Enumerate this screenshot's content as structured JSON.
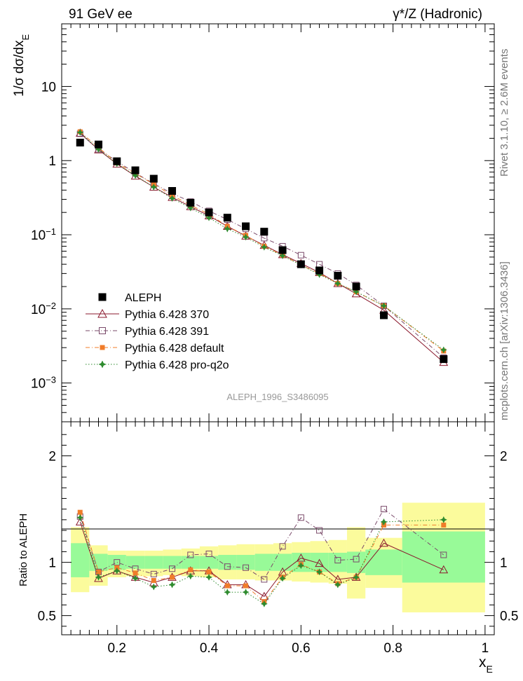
{
  "header": {
    "left_title": "91 GeV ee",
    "right_title": "γ*/Z (Hadronic)",
    "side_label_top": "Rivet 3.1.10, ≥ 2.6M events",
    "side_label_bottom": "mcplots.cern.ch [arXiv:1306.3436]",
    "watermark": "ALEPH_1996_S3486095"
  },
  "colors": {
    "data": "#000000",
    "p370": "#8b1a2e",
    "p391": "#7a4a6a",
    "pdefault": "#f07c2a",
    "pq2o": "#2e8b2e",
    "band_inner": "#98fa98",
    "band_outer": "#fbfb9c"
  },
  "chart_data": [
    {
      "type": "scatter",
      "title": "",
      "xlabel": "x_E",
      "ylabel": "1/σ dσ/dx_E",
      "yscale": "log",
      "ylim": [
        0.0003,
        70
      ],
      "xlim": [
        0.08,
        1.02
      ],
      "ytick_labels": [
        "10^-3",
        "10^-2",
        "10^-1",
        "1",
        "10"
      ],
      "legend_position": "bottom-left",
      "series": [
        {
          "name": "ALEPH",
          "color_key": "data",
          "marker": "filled-square",
          "x": [
            0.12,
            0.16,
            0.2,
            0.24,
            0.28,
            0.32,
            0.36,
            0.4,
            0.44,
            0.48,
            0.52,
            0.56,
            0.6,
            0.64,
            0.68,
            0.72,
            0.78,
            0.91
          ],
          "y": [
            1.75,
            1.65,
            0.98,
            0.74,
            0.57,
            0.39,
            0.27,
            0.2,
            0.17,
            0.13,
            0.11,
            0.062,
            0.04,
            0.033,
            0.028,
            0.02,
            0.0082,
            0.0021
          ]
        },
        {
          "name": "Pythia 6.428 370",
          "color_key": "p370",
          "marker": "open-triangle",
          "line": "solid",
          "x": [
            0.12,
            0.16,
            0.2,
            0.24,
            0.28,
            0.32,
            0.36,
            0.4,
            0.44,
            0.48,
            0.52,
            0.56,
            0.6,
            0.64,
            0.68,
            0.72,
            0.78,
            0.91
          ],
          "y": [
            2.35,
            1.4,
            0.9,
            0.62,
            0.44,
            0.32,
            0.24,
            0.18,
            0.13,
            0.096,
            0.072,
            0.054,
            0.041,
            0.031,
            0.022,
            0.016,
            0.0096,
            0.0019
          ]
        },
        {
          "name": "Pythia 6.428 391",
          "color_key": "p391",
          "marker": "open-square",
          "line": "dashdot",
          "x": [
            0.12,
            0.16,
            0.2,
            0.24,
            0.28,
            0.32,
            0.36,
            0.4,
            0.44,
            0.48,
            0.52,
            0.56,
            0.6,
            0.64,
            0.68,
            0.72,
            0.78,
            0.91
          ],
          "y": [
            2.3,
            1.42,
            0.98,
            0.68,
            0.49,
            0.36,
            0.28,
            0.21,
            0.16,
            0.12,
            0.09,
            0.07,
            0.053,
            0.04,
            0.03,
            0.021,
            0.011,
            0.0022
          ]
        },
        {
          "name": "Pythia 6.428 default",
          "color_key": "pdefault",
          "marker": "filled-square",
          "line": "dashdot",
          "x": [
            0.12,
            0.16,
            0.2,
            0.24,
            0.28,
            0.32,
            0.36,
            0.4,
            0.44,
            0.48,
            0.52,
            0.56,
            0.6,
            0.64,
            0.68,
            0.72,
            0.78,
            0.91
          ],
          "y": [
            2.45,
            1.5,
            0.93,
            0.67,
            0.48,
            0.34,
            0.25,
            0.19,
            0.13,
            0.098,
            0.07,
            0.053,
            0.039,
            0.03,
            0.022,
            0.017,
            0.011,
            0.0027
          ]
        },
        {
          "name": "Pythia 6.428 pro-q2o",
          "color_key": "pq2o",
          "marker": "star",
          "line": "dotted",
          "x": [
            0.12,
            0.16,
            0.2,
            0.24,
            0.28,
            0.32,
            0.36,
            0.4,
            0.44,
            0.48,
            0.52,
            0.56,
            0.6,
            0.64,
            0.68,
            0.72,
            0.78,
            0.91
          ],
          "y": [
            2.4,
            1.42,
            0.91,
            0.63,
            0.44,
            0.31,
            0.23,
            0.17,
            0.12,
            0.093,
            0.068,
            0.052,
            0.039,
            0.029,
            0.022,
            0.017,
            0.011,
            0.0028
          ]
        }
      ]
    },
    {
      "type": "scatter",
      "title": "",
      "xlabel": "x_E",
      "ylabel": "Ratio to ALEPH",
      "ylim": [
        0.32,
        2.32
      ],
      "xlim": [
        0.08,
        1.02
      ],
      "xticks": [
        0.2,
        0.4,
        0.6,
        0.8,
        1
      ],
      "yticks": [
        0.5,
        1,
        2
      ],
      "bands": {
        "edges": [
          0.1,
          0.14,
          0.18,
          0.22,
          0.26,
          0.3,
          0.34,
          0.38,
          0.42,
          0.46,
          0.5,
          0.54,
          0.58,
          0.62,
          0.66,
          0.7,
          0.74,
          0.82,
          1.0
        ],
        "inner_lo": [
          0.86,
          0.92,
          0.93,
          0.94,
          0.94,
          0.94,
          0.94,
          0.94,
          0.93,
          0.93,
          0.92,
          0.92,
          0.91,
          0.91,
          0.91,
          0.9,
          0.88,
          0.81
        ],
        "inner_hi": [
          1.18,
          1.08,
          1.07,
          1.06,
          1.06,
          1.06,
          1.06,
          1.06,
          1.07,
          1.07,
          1.08,
          1.08,
          1.09,
          1.09,
          1.09,
          1.1,
          1.12,
          1.29
        ],
        "outer_lo": [
          0.72,
          0.78,
          0.86,
          0.87,
          0.87,
          0.88,
          0.87,
          0.86,
          0.84,
          0.84,
          0.83,
          0.83,
          0.82,
          0.81,
          0.8,
          0.66,
          0.76,
          0.53
        ],
        "outer_hi": [
          1.33,
          1.16,
          1.11,
          1.11,
          1.11,
          1.12,
          1.13,
          1.15,
          1.16,
          1.17,
          1.17,
          1.18,
          1.19,
          1.2,
          1.21,
          1.33,
          1.23,
          1.56
        ]
      },
      "series": [
        {
          "name": "Pythia 6.428 370",
          "color_key": "p370",
          "marker": "open-triangle",
          "line": "solid",
          "x": [
            0.12,
            0.16,
            0.2,
            0.24,
            0.28,
            0.32,
            0.36,
            0.4,
            0.44,
            0.48,
            0.52,
            0.56,
            0.6,
            0.64,
            0.68,
            0.72,
            0.78,
            0.91
          ],
          "y": [
            1.38,
            0.85,
            0.92,
            0.86,
            0.81,
            0.86,
            0.92,
            0.92,
            0.79,
            0.79,
            0.68,
            0.91,
            1.04,
            0.99,
            0.84,
            0.86,
            1.18,
            0.93
          ]
        },
        {
          "name": "Pythia 6.428 391",
          "color_key": "p391",
          "marker": "open-square",
          "line": "dashdot",
          "x": [
            0.12,
            0.16,
            0.2,
            0.24,
            0.28,
            0.32,
            0.36,
            0.4,
            0.44,
            0.48,
            0.52,
            0.56,
            0.6,
            0.64,
            0.68,
            0.72,
            0.78,
            0.91
          ],
          "y": [
            1.43,
            0.91,
            1.0,
            0.94,
            0.89,
            0.94,
            1.07,
            1.08,
            0.96,
            0.95,
            0.84,
            1.15,
            1.42,
            1.3,
            1.02,
            1.03,
            1.5,
            1.07
          ]
        },
        {
          "name": "Pythia 6.428 default",
          "color_key": "pdefault",
          "marker": "filled-square",
          "line": "dashdot",
          "x": [
            0.12,
            0.16,
            0.2,
            0.24,
            0.28,
            0.32,
            0.36,
            0.4,
            0.44,
            0.48,
            0.52,
            0.56,
            0.6,
            0.64,
            0.68,
            0.72,
            0.78,
            0.91
          ],
          "y": [
            1.47,
            0.91,
            0.95,
            0.9,
            0.83,
            0.86,
            0.93,
            0.91,
            0.78,
            0.78,
            0.63,
            0.86,
            0.98,
            0.91,
            0.8,
            0.86,
            1.35,
            1.35
          ]
        },
        {
          "name": "Pythia 6.428 pro-q2o",
          "color_key": "pq2o",
          "marker": "star",
          "line": "dotted",
          "x": [
            0.12,
            0.16,
            0.2,
            0.24,
            0.28,
            0.32,
            0.36,
            0.4,
            0.44,
            0.48,
            0.52,
            0.56,
            0.6,
            0.64,
            0.68,
            0.72,
            0.78,
            0.91
          ],
          "y": [
            1.42,
            0.86,
            0.92,
            0.85,
            0.77,
            0.79,
            0.87,
            0.86,
            0.72,
            0.72,
            0.61,
            0.85,
            0.97,
            0.91,
            0.79,
            0.86,
            1.38,
            1.4
          ]
        }
      ]
    }
  ]
}
